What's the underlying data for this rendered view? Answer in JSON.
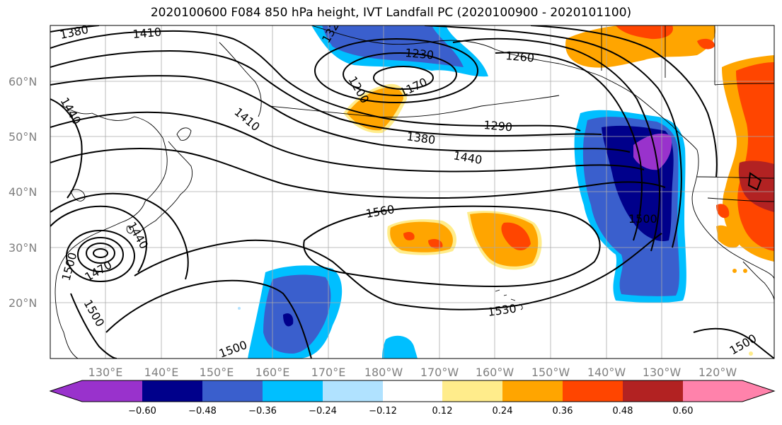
{
  "title": "2020100600 F084 850 hPa height, IVT Landfall PC (2020100900 - 2020101100)",
  "map": {
    "lat_labels": [
      "20°N",
      "30°N",
      "40°N",
      "50°N",
      "60°N"
    ],
    "lon_labels": [
      "130°E",
      "140°E",
      "150°E",
      "160°E",
      "170°E",
      "180°W",
      "170°W",
      "160°W",
      "150°W",
      "140°W",
      "130°W",
      "120°W"
    ],
    "contour_labels": [
      "1380",
      "1410",
      "1320",
      "1230",
      "1260",
      "1170",
      "1200",
      "1440",
      "1410",
      "1290",
      "1380",
      "1440",
      "1560",
      "1500",
      "1440",
      "1470",
      "1500",
      "1500",
      "1530",
      "1500",
      "1500",
      "1560"
    ],
    "colors": {
      "purple": "#9932CC",
      "navy": "#00008B",
      "royal": "#3A5FCD",
      "deepsky": "#00BFFF",
      "lightblue": "#B0E2FF",
      "white": "#FFFFFF",
      "khaki": "#FFEC8B",
      "orange": "#FFA500",
      "orangered": "#FF4500",
      "firebrick": "#B22222",
      "pink": "#FF82AB"
    }
  },
  "colorbar": {
    "ticks": [
      "−0.60",
      "−0.48",
      "−0.36",
      "−0.24",
      "−0.12",
      "0.12",
      "0.24",
      "0.36",
      "0.48",
      "0.60"
    ],
    "colors": [
      "#9932CC",
      "#00008B",
      "#3A5FCD",
      "#00BFFF",
      "#B0E2FF",
      "#FFFFFF",
      "#FFEC8B",
      "#FFA500",
      "#FF4500",
      "#B22222",
      "#FF82AB"
    ]
  }
}
